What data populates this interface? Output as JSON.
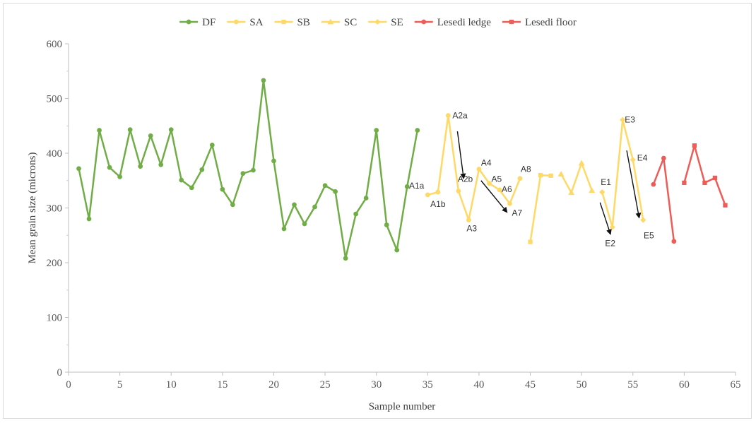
{
  "chart_data": {
    "type": "line",
    "xlabel": "Sample number",
    "ylabel": "Mean grain size (microns)",
    "xlim": [
      0,
      65
    ],
    "ylim": [
      0,
      600
    ],
    "xticks": [
      0,
      5,
      10,
      15,
      20,
      25,
      30,
      35,
      40,
      45,
      50,
      55,
      60,
      65
    ],
    "yticks": [
      0,
      100,
      200,
      300,
      400,
      500,
      600
    ],
    "grid": false,
    "legend_position": "top",
    "series": [
      {
        "name": "DF",
        "color": "#70ad47",
        "marker": "circle",
        "segments": [
          [
            [
              1,
              372
            ],
            [
              2,
              280
            ],
            [
              3,
              442
            ],
            [
              4,
              374
            ],
            [
              5,
              357
            ],
            [
              6,
              443
            ],
            [
              7,
              376
            ],
            [
              8,
              432
            ],
            [
              9,
              379
            ],
            [
              10,
              443
            ],
            [
              11,
              351
            ],
            [
              12,
              337
            ],
            [
              13,
              370
            ],
            [
              14,
              415
            ],
            [
              15,
              334
            ],
            [
              16,
              306
            ],
            [
              17,
              363
            ],
            [
              18,
              369
            ],
            [
              19,
              533
            ],
            [
              20,
              386
            ],
            [
              21,
              262
            ],
            [
              22,
              306
            ],
            [
              23,
              271
            ],
            [
              24,
              302
            ],
            [
              25,
              341
            ],
            [
              26,
              330
            ],
            [
              27,
              208
            ],
            [
              28,
              289
            ],
            [
              29,
              318
            ],
            [
              30,
              442
            ],
            [
              31,
              269
            ],
            [
              32,
              223
            ],
            [
              33,
              339
            ],
            [
              34,
              442
            ]
          ]
        ]
      },
      {
        "name": "SA",
        "color": "#ffd966",
        "marker": "circle",
        "segments": [
          [
            [
              35,
              324
            ],
            [
              36,
              329
            ],
            [
              37,
              469
            ],
            [
              38,
              331
            ],
            [
              39,
              278
            ],
            [
              40,
              371
            ],
            [
              41,
              345
            ],
            [
              42,
              333
            ],
            [
              43,
              308
            ],
            [
              44,
              354
            ]
          ]
        ]
      },
      {
        "name": "SB",
        "color": "#ffd966",
        "marker": "square",
        "segments": [
          [
            [
              45,
              238
            ],
            [
              46,
              360
            ],
            [
              47,
              359
            ]
          ]
        ]
      },
      {
        "name": "SC",
        "color": "#ffd966",
        "marker": "triangle",
        "segments": [
          [
            [
              48,
              362
            ],
            [
              49,
              328
            ],
            [
              50,
              382
            ],
            [
              51,
              332
            ]
          ]
        ]
      },
      {
        "name": "SE",
        "color": "#ffd966",
        "marker": "diamond",
        "segments": [
          [
            [
              52,
              329
            ],
            [
              53,
              265
            ],
            [
              54,
              461
            ],
            [
              55,
              388
            ],
            [
              56,
              278
            ]
          ]
        ]
      },
      {
        "name": "Lesedi ledge",
        "color": "#ed5c57",
        "marker": "circle",
        "segments": [
          [
            [
              57,
              343
            ],
            [
              58,
              391
            ],
            [
              59,
              239
            ]
          ]
        ]
      },
      {
        "name": "Lesedi floor",
        "color": "#ed5c57",
        "marker": "square",
        "segments": [
          [
            [
              60,
              346
            ],
            [
              61,
              414
            ],
            [
              62,
              346
            ],
            [
              63,
              355
            ],
            [
              64,
              305
            ]
          ]
        ]
      }
    ],
    "annotations": [
      {
        "text": "A1a",
        "x": 35,
        "y": 324,
        "anchor": "end",
        "dx": -5,
        "dy": -9
      },
      {
        "text": "A1b",
        "x": 36,
        "y": 329,
        "anchor": "middle",
        "dx": 0,
        "dy": 21
      },
      {
        "text": "A2a",
        "x": 37,
        "y": 469,
        "anchor": "start",
        "dx": 6,
        "dy": 4
      },
      {
        "text": "A2b",
        "x": 38,
        "y": 331,
        "anchor": "start",
        "dx": -1,
        "dy": -13
      },
      {
        "text": "A3",
        "x": 39,
        "y": 278,
        "anchor": "start",
        "dx": -3,
        "dy": 16
      },
      {
        "text": "A4",
        "x": 40,
        "y": 371,
        "anchor": "start",
        "dx": 3,
        "dy": -5
      },
      {
        "text": "A5",
        "x": 41,
        "y": 345,
        "anchor": "start",
        "dx": 3,
        "dy": -2
      },
      {
        "text": "A6",
        "x": 42,
        "y": 333,
        "anchor": "start",
        "dx": 3,
        "dy": 3
      },
      {
        "text": "A7",
        "x": 43,
        "y": 308,
        "anchor": "start",
        "dx": 3,
        "dy": 17
      },
      {
        "text": "A8",
        "x": 44,
        "y": 354,
        "anchor": "start",
        "dx": 1,
        "dy": -9
      },
      {
        "text": "E1",
        "x": 52,
        "y": 329,
        "anchor": "start",
        "dx": -2,
        "dy": -10
      },
      {
        "text": "E2",
        "x": 53,
        "y": 265,
        "anchor": "middle",
        "dx": -3,
        "dy": 27
      },
      {
        "text": "E3",
        "x": 54,
        "y": 461,
        "anchor": "start",
        "dx": 3,
        "dy": 4
      },
      {
        "text": "E4",
        "x": 55,
        "y": 388,
        "anchor": "start",
        "dx": 6,
        "dy": 1
      },
      {
        "text": "E5",
        "x": 56,
        "y": 278,
        "anchor": "middle",
        "dx": 8,
        "dy": 26
      }
    ],
    "arrows": [
      {
        "from": [
          37.9,
          440
        ],
        "to": [
          38.5,
          355
        ]
      },
      {
        "from": [
          40.2,
          350
        ],
        "to": [
          42.7,
          293
        ]
      },
      {
        "from": [
          51.8,
          310
        ],
        "to": [
          52.8,
          253
        ]
      },
      {
        "from": [
          54.4,
          405
        ],
        "to": [
          55.6,
          283
        ]
      }
    ]
  }
}
